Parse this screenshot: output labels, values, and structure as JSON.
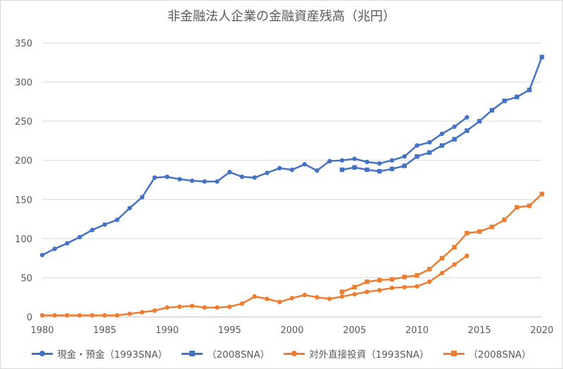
{
  "chart_data": {
    "type": "line",
    "title": "非金融法人企業の金融資産残高（兆円）",
    "xlabel": "",
    "ylabel": "",
    "xlim": [
      1980,
      2020
    ],
    "ylim": [
      0,
      350
    ],
    "xticks": [
      1980,
      1985,
      1990,
      1995,
      2000,
      2005,
      2010,
      2015,
      2020
    ],
    "yticks": [
      0,
      50,
      100,
      150,
      200,
      250,
      300,
      350
    ],
    "grid": true,
    "legend_position": "bottom",
    "series": [
      {
        "name": "現金・預金（1993SNA）",
        "color": "#4472c4",
        "marker": "circle",
        "x": [
          1980,
          1981,
          1982,
          1983,
          1984,
          1985,
          1986,
          1987,
          1988,
          1989,
          1990,
          1991,
          1992,
          1993,
          1994,
          1995,
          1996,
          1997,
          1998,
          1999,
          2000,
          2001,
          2002,
          2003,
          2004,
          2005,
          2006,
          2007,
          2008,
          2009,
          2010,
          2011,
          2012,
          2013,
          2014
        ],
        "values": [
          79,
          87,
          94,
          102,
          111,
          118,
          124,
          139,
          153,
          178,
          179,
          176,
          174,
          173,
          173,
          185,
          179,
          178,
          184,
          190,
          188,
          195,
          187,
          199,
          200,
          202,
          198,
          196,
          200,
          205,
          219,
          223,
          234,
          243,
          255
        ]
      },
      {
        "name": "（2008SNA）",
        "color": "#4472c4",
        "marker": "square",
        "x": [
          2004,
          2005,
          2006,
          2007,
          2008,
          2009,
          2010,
          2011,
          2012,
          2013,
          2014,
          2015,
          2016,
          2017,
          2018,
          2019,
          2020
        ],
        "values": [
          188,
          191,
          188,
          186,
          189,
          193,
          205,
          210,
          219,
          227,
          238,
          250,
          264,
          276,
          281,
          290,
          332
        ]
      },
      {
        "name": "対外直接投資（1993SNA）",
        "color": "#ed7d31",
        "marker": "circle",
        "x": [
          1980,
          1981,
          1982,
          1983,
          1984,
          1985,
          1986,
          1987,
          1988,
          1989,
          1990,
          1991,
          1992,
          1993,
          1994,
          1995,
          1996,
          1997,
          1998,
          1999,
          2000,
          2001,
          2002,
          2003,
          2004,
          2005,
          2006,
          2007,
          2008,
          2009,
          2010,
          2011,
          2012,
          2013,
          2014
        ],
        "values": [
          2,
          2,
          2,
          2,
          2,
          2,
          2,
          4,
          6,
          8,
          12,
          13,
          14,
          12,
          12,
          13,
          17,
          26,
          23,
          19,
          24,
          28,
          25,
          23,
          26,
          29,
          32,
          34,
          37,
          38,
          39,
          45,
          56,
          67,
          78
        ]
      },
      {
        "name": "（2008SNA）",
        "color": "#ed7d31",
        "marker": "square",
        "x": [
          2004,
          2005,
          2006,
          2007,
          2008,
          2009,
          2010,
          2011,
          2012,
          2013,
          2014,
          2015,
          2016,
          2017,
          2018,
          2019,
          2020
        ],
        "values": [
          32,
          38,
          45,
          47,
          48,
          51,
          53,
          61,
          75,
          89,
          107,
          109,
          115,
          124,
          140,
          142,
          157
        ]
      }
    ]
  }
}
